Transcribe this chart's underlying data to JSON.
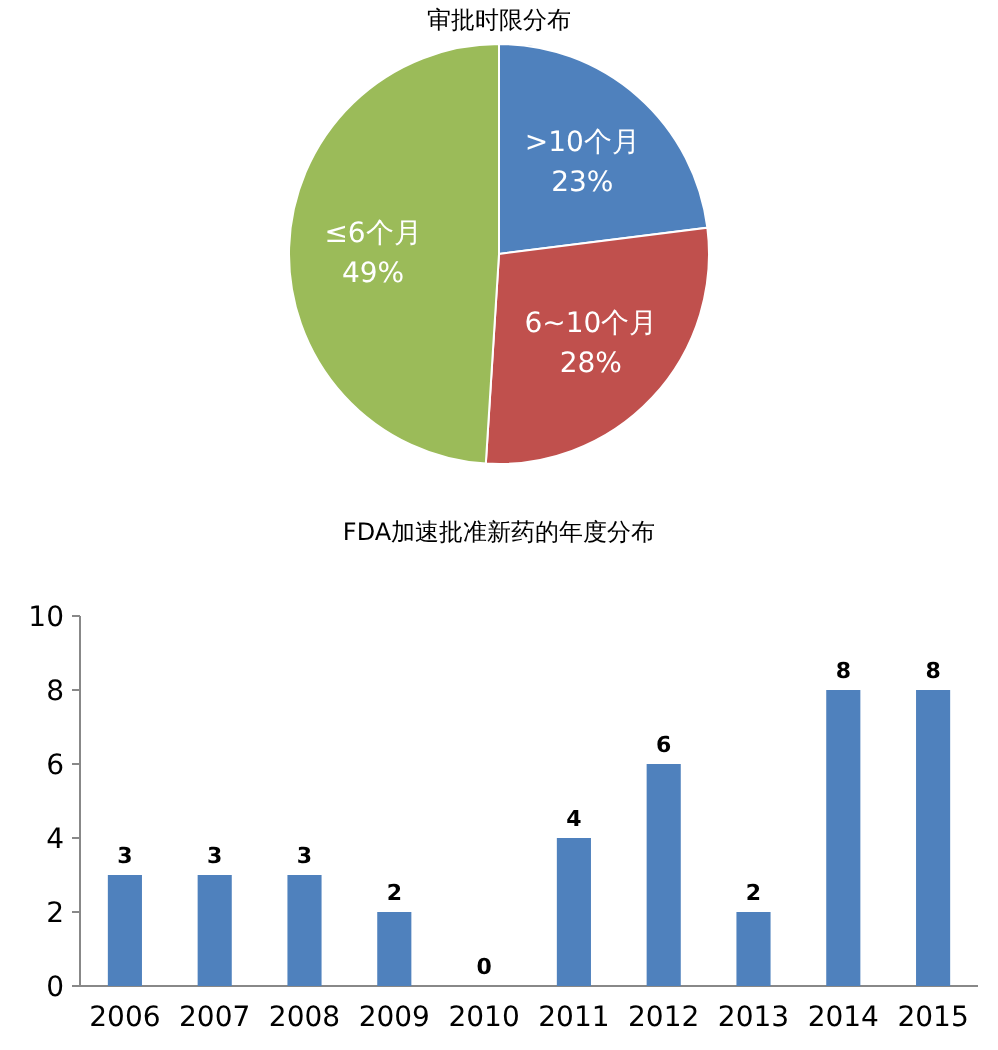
{
  "chart_data": [
    {
      "type": "pie",
      "title": "审批时限分布",
      "categories": [
        ">10个月",
        "6~10个月",
        "≤6个月"
      ],
      "values": [
        23,
        28,
        49
      ],
      "colors": [
        "#4f81bd",
        "#c0504d",
        "#9bbb59"
      ],
      "value_labels": [
        "23%",
        "28%",
        "49%"
      ]
    },
    {
      "type": "bar",
      "title": "FDA加速批准新药的年度分布",
      "categories": [
        "2006",
        "2007",
        "2008",
        "2009",
        "2010",
        "2011",
        "2012",
        "2013",
        "2014",
        "2015"
      ],
      "values": [
        3,
        3,
        3,
        2,
        0,
        4,
        6,
        2,
        8,
        8
      ],
      "color": "#4f81bd",
      "ylim": [
        0,
        10
      ],
      "yticks": [
        0,
        2,
        4,
        6,
        8,
        10
      ],
      "data_labels": true,
      "grid": false
    }
  ]
}
